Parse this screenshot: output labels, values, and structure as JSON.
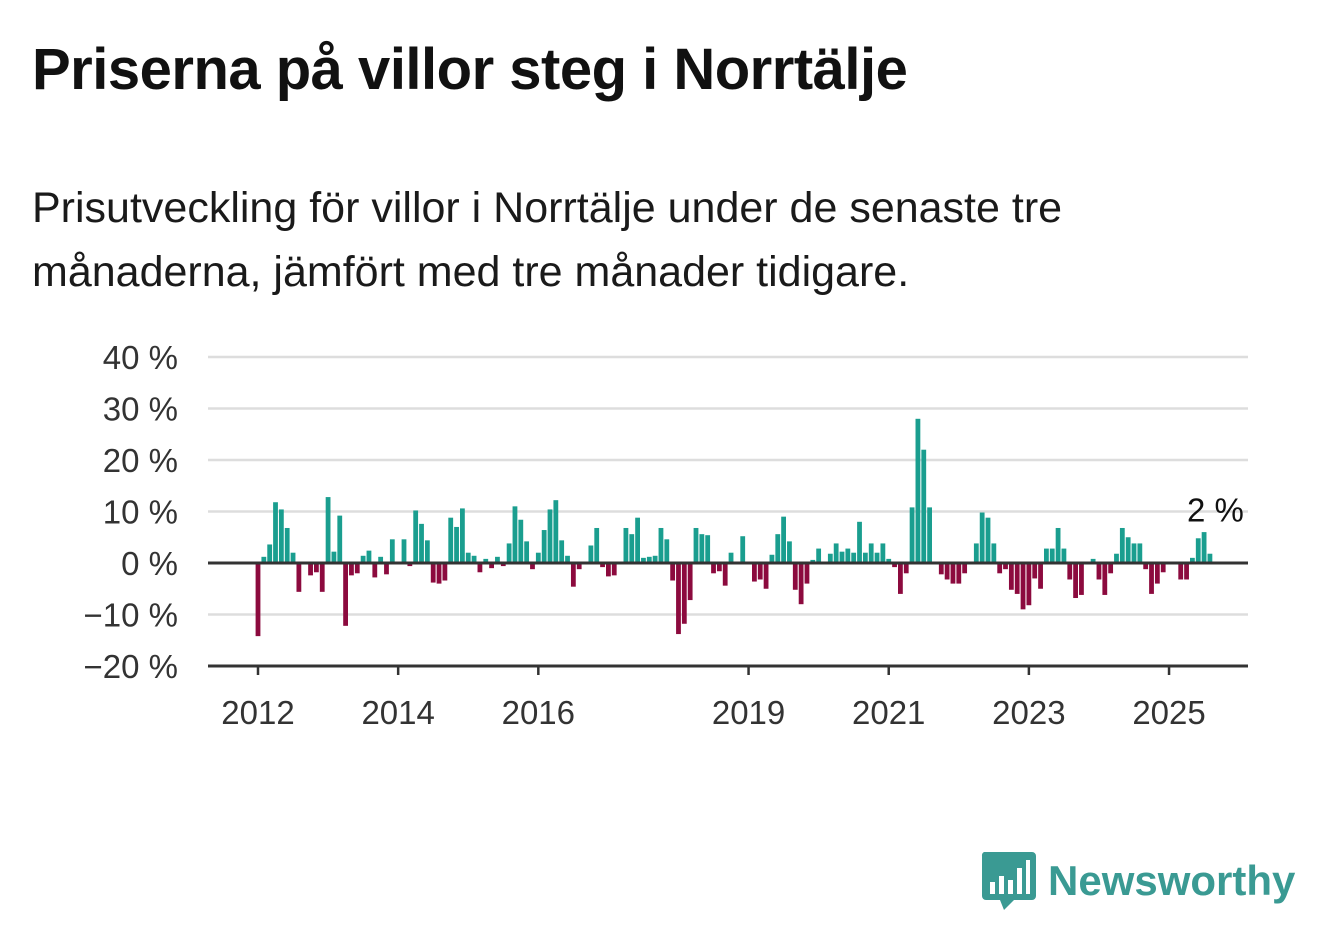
{
  "title": "Priserna på villor steg i Norrtälje",
  "subtitle": "Prisutveckling för villor i Norrtälje under de senaste tre månaderna, jämfört med tre månader tidigare.",
  "logo": {
    "text": "Newsworthy",
    "icon": "bar-chart-speech-bubble-icon",
    "color": "#3a9a93"
  },
  "colors": {
    "positive": "#1a9e8f",
    "negative": "#8c0a3e",
    "grid": "#dddddd",
    "zero_line": "#333333"
  },
  "chart_data": {
    "type": "bar",
    "x_start": "2012-01",
    "ylim": [
      -20,
      40
    ],
    "y_ticks": [
      -20,
      -10,
      0,
      10,
      20,
      30,
      40
    ],
    "y_tick_labels": [
      "−20 %",
      "−10 %",
      "0 %",
      "10 %",
      "20 %",
      "30 %",
      "40 %"
    ],
    "x_ticks": [
      "2012-01",
      "2014-01",
      "2016-01",
      "2019-01",
      "2021-01",
      "2023-01",
      "2025-01"
    ],
    "x_tick_labels": [
      "2012",
      "2014",
      "2016",
      "2019",
      "2021",
      "2023",
      "2025"
    ],
    "end_label": "2 %",
    "grid": true,
    "values": [
      -14.2,
      1.2,
      3.6,
      11.8,
      10.4,
      6.8,
      2.0,
      -5.6,
      0,
      -2.4,
      -1.8,
      -5.6,
      12.8,
      2.2,
      9.2,
      -12.2,
      -2.4,
      -2.0,
      1.4,
      2.4,
      -2.8,
      1.2,
      -2.2,
      4.6,
      0,
      4.6,
      -0.6,
      10.2,
      7.6,
      4.4,
      -3.8,
      -4.0,
      -3.4,
      8.8,
      7.0,
      10.6,
      2.0,
      1.4,
      -1.8,
      0.8,
      -1.0,
      1.2,
      -0.6,
      3.8,
      11.0,
      8.4,
      4.2,
      -1.2,
      2.0,
      6.4,
      10.4,
      12.2,
      4.4,
      1.4,
      -4.6,
      -1.2,
      0,
      3.4,
      6.8,
      -0.8,
      -2.6,
      -2.4,
      0,
      6.8,
      5.6,
      8.8,
      1.0,
      1.2,
      1.4,
      6.8,
      4.6,
      -3.4,
      -13.8,
      -11.8,
      -7.2,
      6.8,
      5.6,
      5.4,
      -2.0,
      -1.6,
      -4.4,
      2.0,
      0,
      5.2,
      0,
      -3.6,
      -3.2,
      -5.0,
      1.6,
      5.6,
      9.0,
      4.2,
      -5.2,
      -8.0,
      -4.0,
      0.6,
      2.8,
      0,
      1.8,
      3.8,
      2.2,
      2.8,
      2.0,
      8.0,
      2.0,
      3.8,
      2.0,
      3.8,
      0.8,
      -0.8,
      -6.0,
      -2.0,
      10.8,
      28.0,
      22.0,
      10.8,
      0,
      -2.2,
      -3.2,
      -4.0,
      -4.0,
      -2.0,
      0,
      3.8,
      9.8,
      8.8,
      3.8,
      -2.0,
      -1.2,
      -5.2,
      -6.0,
      -9.0,
      -8.2,
      -3.0,
      -5.0,
      2.8,
      2.8,
      6.8,
      2.8,
      -3.2,
      -6.8,
      -6.2,
      0,
      0.8,
      -3.2,
      -6.2,
      -2.0,
      1.8,
      6.8,
      5.0,
      3.8,
      3.8,
      -1.2,
      -6.0,
      -4.0,
      -1.8,
      0,
      0,
      -3.2,
      -3.2,
      1.0,
      4.8,
      6.0,
      1.8
    ]
  }
}
